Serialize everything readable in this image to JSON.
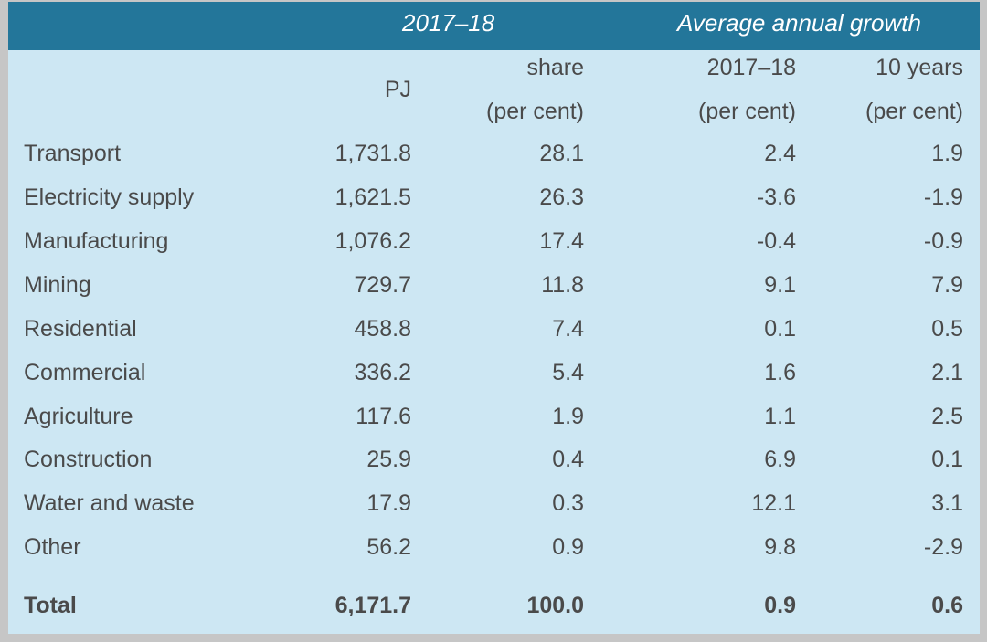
{
  "header": {
    "group_left": "2017–18",
    "group_right": "Average annual growth"
  },
  "columns": {
    "pj": "PJ",
    "share_line1": "share",
    "share_line2": "(per cent)",
    "growth1_line1": "2017–18",
    "growth1_line2": "(per cent)",
    "growth2_line1": "10 years",
    "growth2_line2": "(per cent)"
  },
  "rows": [
    {
      "label": "Transport",
      "pj": "1,731.8",
      "share": "28.1",
      "growth_1yr": "2.4",
      "growth_10yr": "1.9"
    },
    {
      "label": "Electricity supply",
      "pj": "1,621.5",
      "share": "26.3",
      "growth_1yr": "-3.6",
      "growth_10yr": "-1.9"
    },
    {
      "label": "Manufacturing",
      "pj": "1,076.2",
      "share": "17.4",
      "growth_1yr": "-0.4",
      "growth_10yr": "-0.9"
    },
    {
      "label": "Mining",
      "pj": "729.7",
      "share": "11.8",
      "growth_1yr": "9.1",
      "growth_10yr": "7.9"
    },
    {
      "label": "Residential",
      "pj": "458.8",
      "share": "7.4",
      "growth_1yr": "0.1",
      "growth_10yr": "0.5"
    },
    {
      "label": "Commercial",
      "pj": "336.2",
      "share": "5.4",
      "growth_1yr": "1.6",
      "growth_10yr": "2.1"
    },
    {
      "label": "Agriculture",
      "pj": "117.6",
      "share": "1.9",
      "growth_1yr": "1.1",
      "growth_10yr": "2.5"
    },
    {
      "label": "Construction",
      "pj": "25.9",
      "share": "0.4",
      "growth_1yr": "6.9",
      "growth_10yr": "0.1"
    },
    {
      "label": "Water and waste",
      "pj": "17.9",
      "share": "0.3",
      "growth_1yr": "12.1",
      "growth_10yr": "3.1"
    },
    {
      "label": "Other",
      "pj": "56.2",
      "share": "0.9",
      "growth_1yr": "9.8",
      "growth_10yr": "-2.9"
    }
  ],
  "total": {
    "label": "Total",
    "pj": "6,171.7",
    "share": "100.0",
    "growth_1yr": "0.9",
    "growth_10yr": "0.6"
  },
  "colors": {
    "header_band": "#23769a",
    "body_background": "#cde7f3",
    "text": "#4a4a4a",
    "header_text": "#ffffff",
    "outer_border": "#c6c6c6"
  }
}
